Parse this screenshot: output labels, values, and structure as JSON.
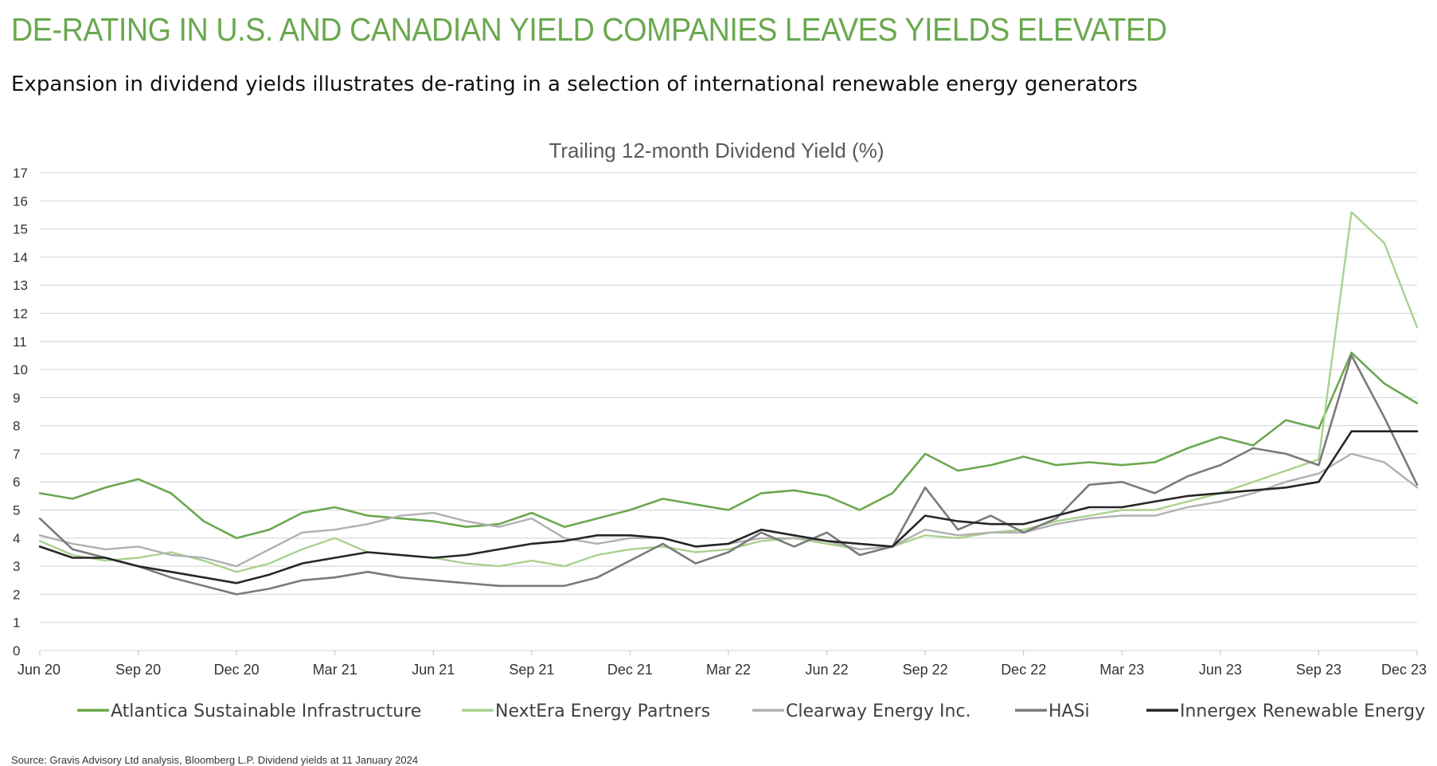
{
  "header": {
    "title": "DE-RATING IN U.S. AND CANADIAN YIELD COMPANIES LEAVES YIELDS ELEVATED",
    "subtitle": "Expansion in dividend yields illustrates de-rating in a selection of international renewable energy generators"
  },
  "footer": {
    "source": "Source: Gravis Advisory Ltd analysis, Bloomberg L.P. Dividend yields at 11 January 2024"
  },
  "colors": {
    "title": "#6aa84f",
    "grid": "#d9d9d9",
    "axis_text": "#333333"
  },
  "chart_data": {
    "type": "line",
    "title": "Trailing 12-month Dividend Yield (%)",
    "xlabel": "",
    "ylabel": "",
    "ylim": [
      0,
      17
    ],
    "yticks": [
      0,
      1,
      2,
      3,
      4,
      5,
      6,
      7,
      8,
      9,
      10,
      11,
      12,
      13,
      14,
      15,
      16,
      17
    ],
    "x_ticks": [
      "Jun 20",
      "Sep 20",
      "Dec 20",
      "Mar 21",
      "Jun 21",
      "Sep 21",
      "Dec 21",
      "Mar 22",
      "Jun 22",
      "Sep 22",
      "Dec 22",
      "Mar 23",
      "Jun 23",
      "Sep 23",
      "Dec 23"
    ],
    "x": [
      "Jun 20",
      "Jul 20",
      "Aug 20",
      "Sep 20",
      "Oct 20",
      "Nov 20",
      "Dec 20",
      "Jan 21",
      "Feb 21",
      "Mar 21",
      "Apr 21",
      "May 21",
      "Jun 21",
      "Jul 21",
      "Aug 21",
      "Sep 21",
      "Oct 21",
      "Nov 21",
      "Dec 21",
      "Jan 22",
      "Feb 22",
      "Mar 22",
      "Apr 22",
      "May 22",
      "Jun 22",
      "Jul 22",
      "Aug 22",
      "Sep 22",
      "Oct 22",
      "Nov 22",
      "Dec 22",
      "Jan 23",
      "Feb 23",
      "Mar 23",
      "Apr 23",
      "May 23",
      "Jun 23",
      "Jul 23",
      "Aug 23",
      "Sep 23",
      "Oct 23",
      "Nov 23",
      "Dec 23"
    ],
    "grid": true,
    "legend_position": "bottom",
    "series": [
      {
        "name": "Atlantica Sustainable Infrastructure",
        "color": "#6aa84f",
        "width": 2.6,
        "values": [
          5.6,
          5.4,
          5.8,
          6.1,
          5.6,
          4.6,
          4.0,
          4.3,
          4.9,
          5.1,
          4.8,
          4.7,
          4.6,
          4.4,
          4.5,
          4.9,
          4.4,
          4.7,
          5.0,
          5.4,
          5.2,
          5.0,
          5.6,
          5.7,
          5.5,
          5.0,
          5.6,
          7.0,
          6.4,
          6.6,
          6.9,
          6.6,
          6.7,
          6.6,
          6.7,
          7.2,
          7.6,
          7.3,
          8.2,
          7.9,
          10.6,
          9.5,
          8.8
        ]
      },
      {
        "name": "NextEra Energy Partners",
        "color": "#a9d18e",
        "width": 2.4,
        "values": [
          3.9,
          3.4,
          3.2,
          3.3,
          3.5,
          3.2,
          2.8,
          3.1,
          3.6,
          4.0,
          3.5,
          3.4,
          3.3,
          3.1,
          3.0,
          3.2,
          3.0,
          3.4,
          3.6,
          3.7,
          3.5,
          3.6,
          3.9,
          4.0,
          3.8,
          3.6,
          3.7,
          4.1,
          4.0,
          4.2,
          4.3,
          4.6,
          4.8,
          5.0,
          5.0,
          5.3,
          5.6,
          6.0,
          6.4,
          6.8,
          15.6,
          14.5,
          11.5
        ]
      },
      {
        "name": "Clearway Energy Inc.",
        "color": "#b0b0b0",
        "width": 2.4,
        "values": [
          4.1,
          3.8,
          3.6,
          3.7,
          3.4,
          3.3,
          3.0,
          3.6,
          4.2,
          4.3,
          4.5,
          4.8,
          4.9,
          4.6,
          4.4,
          4.7,
          4.0,
          3.8,
          4.0,
          4.0,
          3.7,
          3.8,
          4.0,
          4.0,
          3.9,
          3.6,
          3.7,
          4.3,
          4.1,
          4.2,
          4.2,
          4.5,
          4.7,
          4.8,
          4.8,
          5.1,
          5.3,
          5.6,
          6.0,
          6.3,
          7.0,
          6.7,
          5.8
        ]
      },
      {
        "name": "HASi",
        "color": "#7a7a7a",
        "width": 2.6,
        "values": [
          4.7,
          3.6,
          3.3,
          3.0,
          2.6,
          2.3,
          2.0,
          2.2,
          2.5,
          2.6,
          2.8,
          2.6,
          2.5,
          2.4,
          2.3,
          2.3,
          2.3,
          2.6,
          3.2,
          3.8,
          3.1,
          3.5,
          4.2,
          3.7,
          4.2,
          3.4,
          3.7,
          5.8,
          4.3,
          4.8,
          4.2,
          4.7,
          5.9,
          6.0,
          5.6,
          6.2,
          6.6,
          7.2,
          7.0,
          6.6,
          10.5,
          8.3,
          5.9
        ]
      },
      {
        "name": "Innergex Renewable Energy",
        "color": "#262626",
        "width": 2.6,
        "values": [
          3.7,
          3.3,
          3.3,
          3.0,
          2.8,
          2.6,
          2.4,
          2.7,
          3.1,
          3.3,
          3.5,
          3.4,
          3.3,
          3.4,
          3.6,
          3.8,
          3.9,
          4.1,
          4.1,
          4.0,
          3.7,
          3.8,
          4.3,
          4.1,
          3.9,
          3.8,
          3.7,
          4.8,
          4.6,
          4.5,
          4.5,
          4.8,
          5.1,
          5.1,
          5.3,
          5.5,
          5.6,
          5.7,
          5.8,
          6.0,
          7.8,
          7.8,
          7.8
        ]
      }
    ]
  }
}
